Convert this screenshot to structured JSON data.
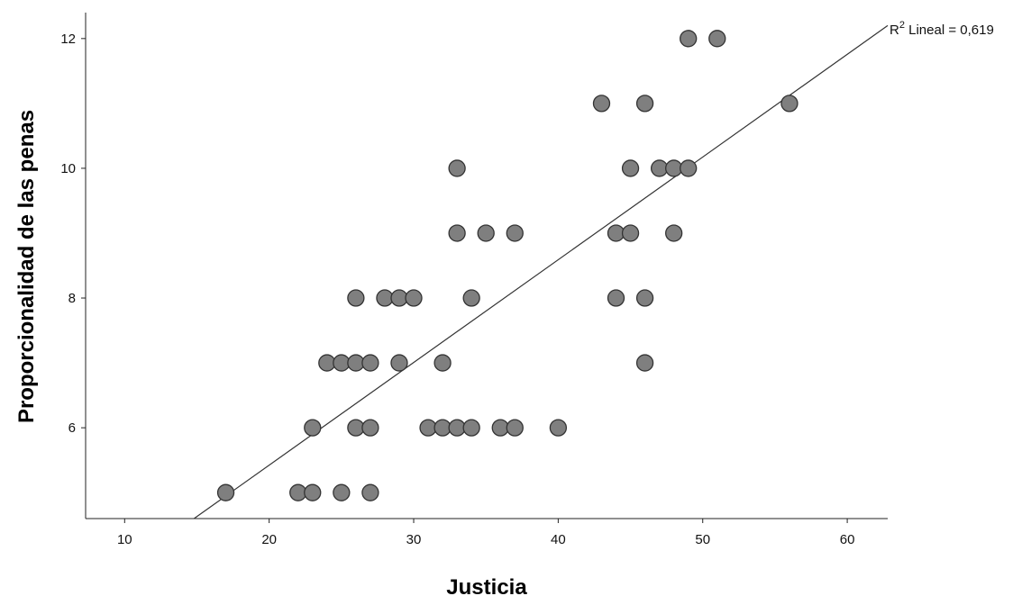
{
  "chart_data": {
    "type": "scatter",
    "title": "",
    "xlabel": "Justicia",
    "ylabel": "Proporcionalidad de las penas",
    "xlim": [
      7.3,
      62.8
    ],
    "ylim": [
      4.6,
      12.4
    ],
    "x_ticks": [
      "10",
      "20",
      "30",
      "40",
      "50",
      "60"
    ],
    "y_ticks": [
      "6",
      "8",
      "10",
      "12"
    ],
    "grid": false,
    "points": [
      {
        "x": 17,
        "y": 5
      },
      {
        "x": 22,
        "y": 5
      },
      {
        "x": 23,
        "y": 5
      },
      {
        "x": 25,
        "y": 5
      },
      {
        "x": 27,
        "y": 5
      },
      {
        "x": 23,
        "y": 6
      },
      {
        "x": 26,
        "y": 6
      },
      {
        "x": 27,
        "y": 6
      },
      {
        "x": 31,
        "y": 6
      },
      {
        "x": 32,
        "y": 6
      },
      {
        "x": 33,
        "y": 6
      },
      {
        "x": 34,
        "y": 6
      },
      {
        "x": 36,
        "y": 6
      },
      {
        "x": 37,
        "y": 6
      },
      {
        "x": 40,
        "y": 6
      },
      {
        "x": 24,
        "y": 7
      },
      {
        "x": 25,
        "y": 7
      },
      {
        "x": 26,
        "y": 7
      },
      {
        "x": 27,
        "y": 7
      },
      {
        "x": 29,
        "y": 7
      },
      {
        "x": 32,
        "y": 7
      },
      {
        "x": 46,
        "y": 7
      },
      {
        "x": 26,
        "y": 8
      },
      {
        "x": 28,
        "y": 8
      },
      {
        "x": 29,
        "y": 8
      },
      {
        "x": 30,
        "y": 8
      },
      {
        "x": 34,
        "y": 8
      },
      {
        "x": 44,
        "y": 8
      },
      {
        "x": 46,
        "y": 8
      },
      {
        "x": 33,
        "y": 9
      },
      {
        "x": 35,
        "y": 9
      },
      {
        "x": 37,
        "y": 9
      },
      {
        "x": 44,
        "y": 9
      },
      {
        "x": 45,
        "y": 9
      },
      {
        "x": 48,
        "y": 9
      },
      {
        "x": 33,
        "y": 10
      },
      {
        "x": 45,
        "y": 10
      },
      {
        "x": 47,
        "y": 10
      },
      {
        "x": 48,
        "y": 10
      },
      {
        "x": 49,
        "y": 10
      },
      {
        "x": 43,
        "y": 11
      },
      {
        "x": 46,
        "y": 11
      },
      {
        "x": 56,
        "y": 11
      },
      {
        "x": 49,
        "y": 12
      },
      {
        "x": 51,
        "y": 12
      }
    ],
    "fit_line": {
      "x_start": 14.8,
      "y_start": 4.6,
      "x_end": 62.8,
      "y_end": 12.2
    },
    "fit_label_main": "R",
    "fit_label_sup": "2",
    "fit_label_rest": " Lineal = 0,619",
    "colors": {
      "marker_fill": "#7f7f7f",
      "marker_stroke": "#333333",
      "line": "#333333",
      "axis": "#222222"
    }
  }
}
